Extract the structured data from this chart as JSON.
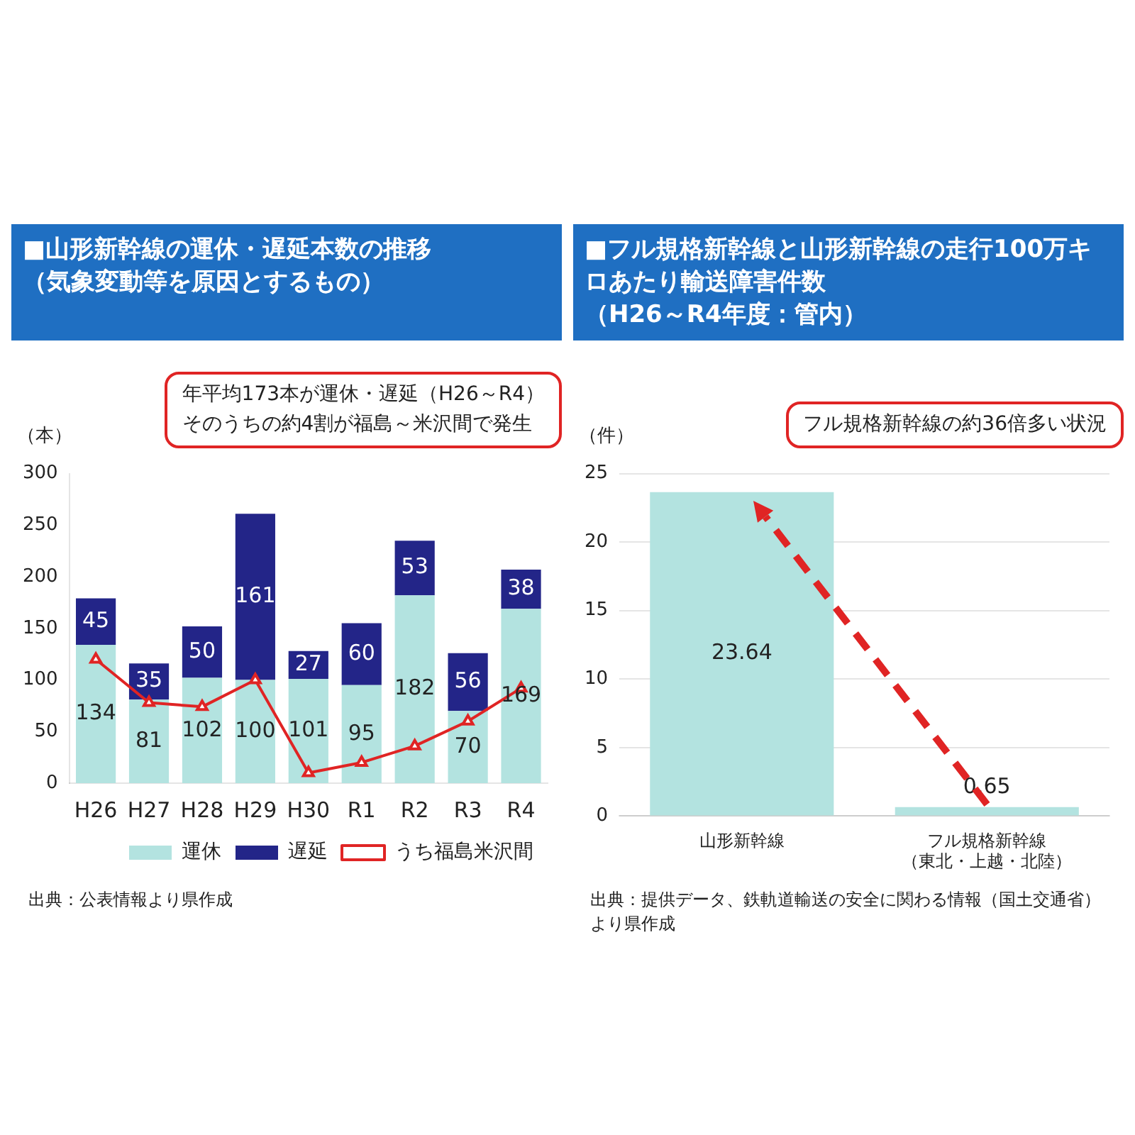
{
  "chart_data": [
    {
      "type": "bar",
      "title": "■山形新幹線の運休・遅延本数の推移",
      "subtitle": "（気象変動等を原因とするもの）",
      "ylabel": "（本）",
      "categories": [
        "H26",
        "H27",
        "H28",
        "H29",
        "H30",
        "R1",
        "R2",
        "R3",
        "R4"
      ],
      "stacked": true,
      "series": [
        {
          "name": "運休",
          "color": "#b3e3e0",
          "values": [
            134,
            81,
            102,
            100,
            101,
            95,
            182,
            70,
            169
          ],
          "value_labels": [
            "134",
            "81",
            "102",
            "100",
            "101",
            "95",
            "182",
            "70",
            "169"
          ]
        },
        {
          "name": "遅延",
          "color": "#232588",
          "values": [
            45,
            35,
            50,
            161,
            27,
            60,
            53,
            56,
            38
          ],
          "value_labels": [
            "45",
            "35",
            "50",
            "161",
            "27",
            "60",
            "53",
            "56",
            "38"
          ]
        },
        {
          "name": "うち福島米沢間",
          "type": "line",
          "color": "#e02424",
          "marker": "triangle",
          "values": [
            120,
            78,
            74,
            100,
            10,
            20,
            36,
            60,
            92
          ]
        }
      ],
      "ylim": [
        0,
        300
      ],
      "yticks": [
        0,
        50,
        100,
        150,
        200,
        250,
        300
      ],
      "legend": "bottom right",
      "annotations": [
        "年平均173本が運休・遅延（H26～R4）",
        "そのうちの約4割が福島～米沢間で発生",
        "出典：公表情報より県作成"
      ]
    },
    {
      "type": "bar",
      "title": "■フル規格新幹線と山形新幹線の走行100万キロあたり輸送障害件数",
      "subtitle": "（H26～R4年度：管内）",
      "ylabel": "（件）",
      "categories": [
        "山形新幹線",
        "フル規格新幹線（東北・上越・北陸）"
      ],
      "values": [
        23.64,
        0.65
      ],
      "color": "#b3e3e0",
      "data_labels": true,
      "ylim": [
        0,
        25
      ],
      "yticks": [
        0,
        5,
        10,
        15,
        20,
        25
      ],
      "grid": "y",
      "annotations": [
        "フル規格新幹線の約36倍多い状況",
        "出典：提供データ、鉄軌道輸送の安全に関わる情報（国土交通省）より県作成"
      ]
    }
  ]
}
